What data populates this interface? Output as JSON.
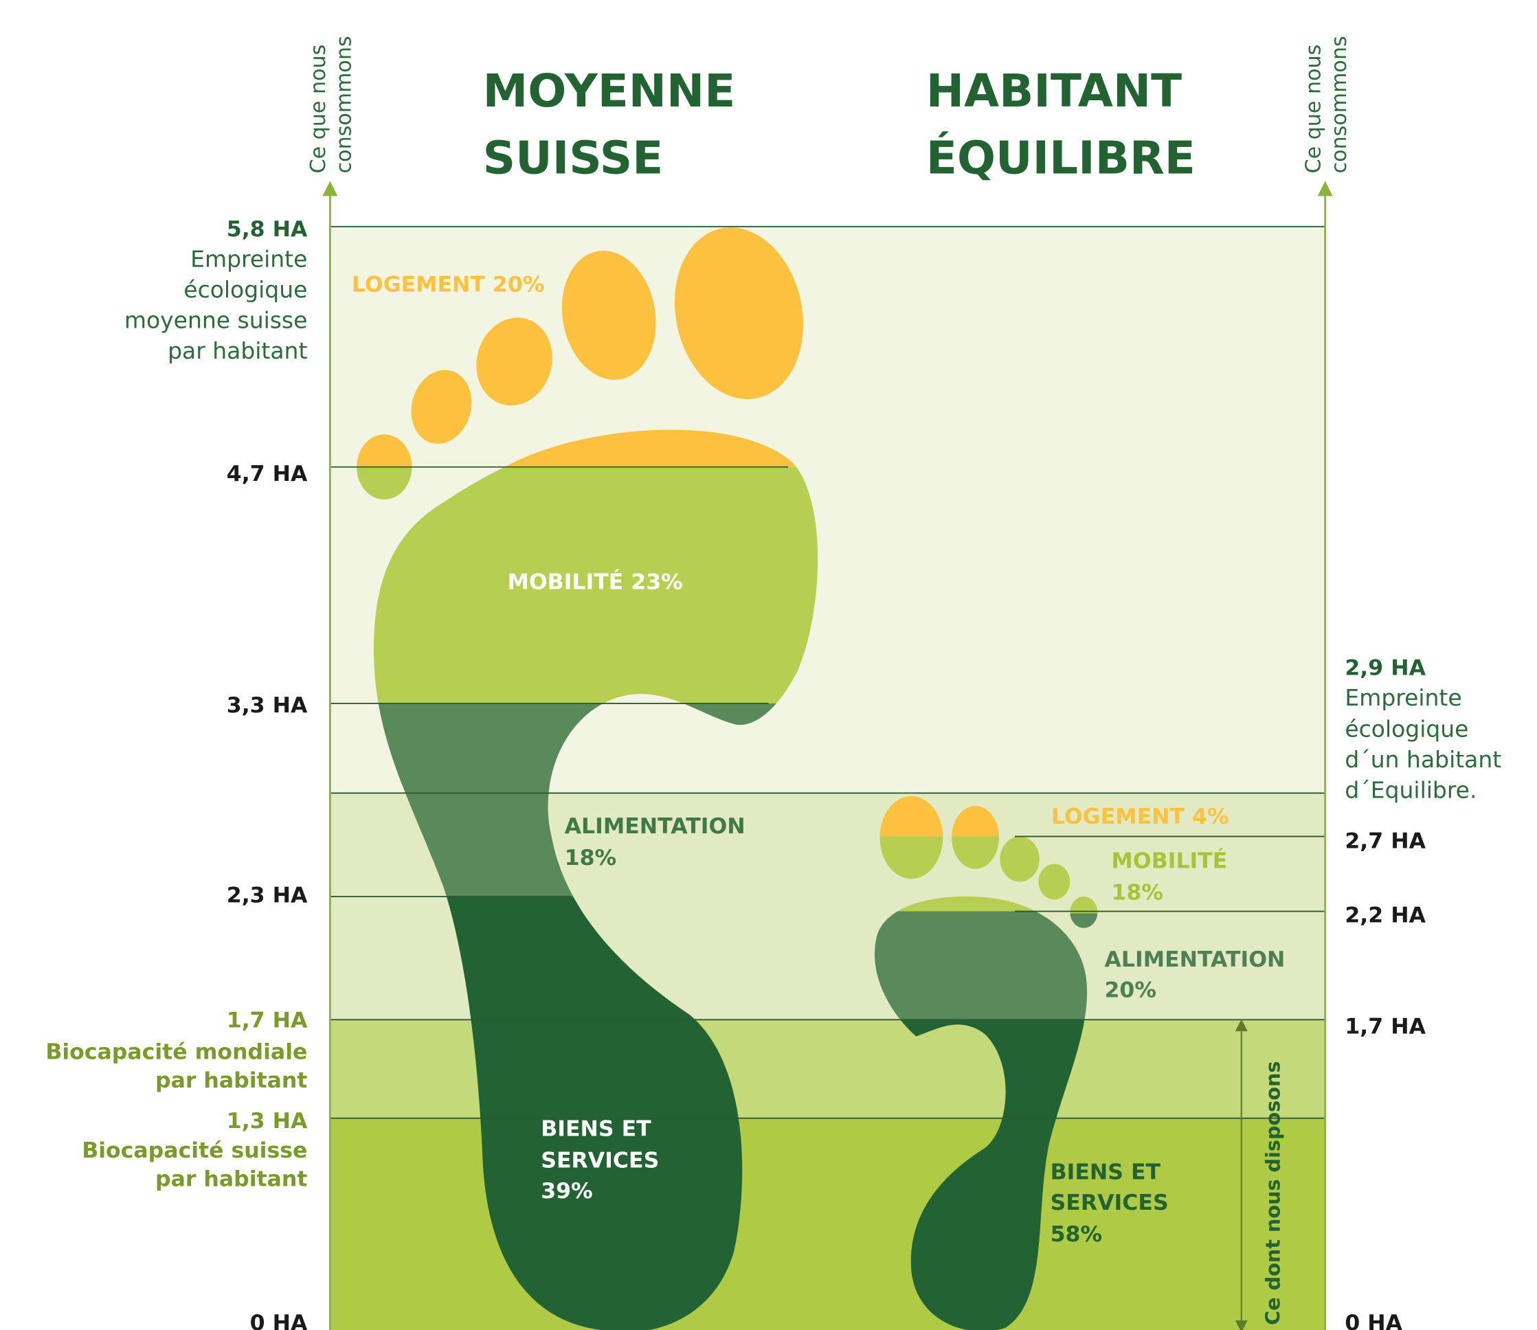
{
  "titles": [
    [
      "MOYENNE",
      "SUISSE"
    ],
    [
      "HABITANT",
      "ÉQUILIBRE"
    ]
  ],
  "axis_labels": {
    "left": [
      "Ce que nous",
      "consommons"
    ],
    "right": [
      "Ce que nous",
      "consommons"
    ],
    "available": "Ce dont nous disposons"
  },
  "left_scale": [
    {
      "label": "5,8 HA",
      "note": [
        "Empreinte",
        "écologique",
        "moyenne suisse",
        "par habitant"
      ]
    },
    {
      "label": "4,7 HA"
    },
    {
      "label": "3,3 HA"
    },
    {
      "label": "2,3 HA"
    },
    {
      "label": "1,7 HA",
      "note": [
        "Biocapacité mondiale",
        "par habitant"
      ]
    },
    {
      "label": "1,3 HA",
      "note": [
        "Biocapacité suisse",
        "par habitant"
      ]
    },
    {
      "label": "0 HA"
    }
  ],
  "right_scale": [
    {
      "label": "2,9 HA",
      "note": [
        "Empreinte",
        "écologique",
        "d´un habitant",
        "d´Equilibre."
      ]
    },
    {
      "label": "2,7 HA"
    },
    {
      "label": "2,2 HA"
    },
    {
      "label": "1,7 HA"
    },
    {
      "label": "0 HA"
    }
  ],
  "segments": {
    "swiss": [
      [
        "LOGEMENT 20%"
      ],
      [
        "MOBILITÉ 23%"
      ],
      [
        "ALIMENTATION",
        "18%"
      ],
      [
        "BIENS ET",
        "SERVICES",
        "39%"
      ]
    ],
    "equilibre": [
      [
        "LOGEMENT 4%"
      ],
      [
        "MOBILITÉ",
        "18%"
      ],
      [
        "ALIMENTATION",
        "20%"
      ],
      [
        "BIENS ET",
        "SERVICES",
        "58%"
      ]
    ]
  }
}
